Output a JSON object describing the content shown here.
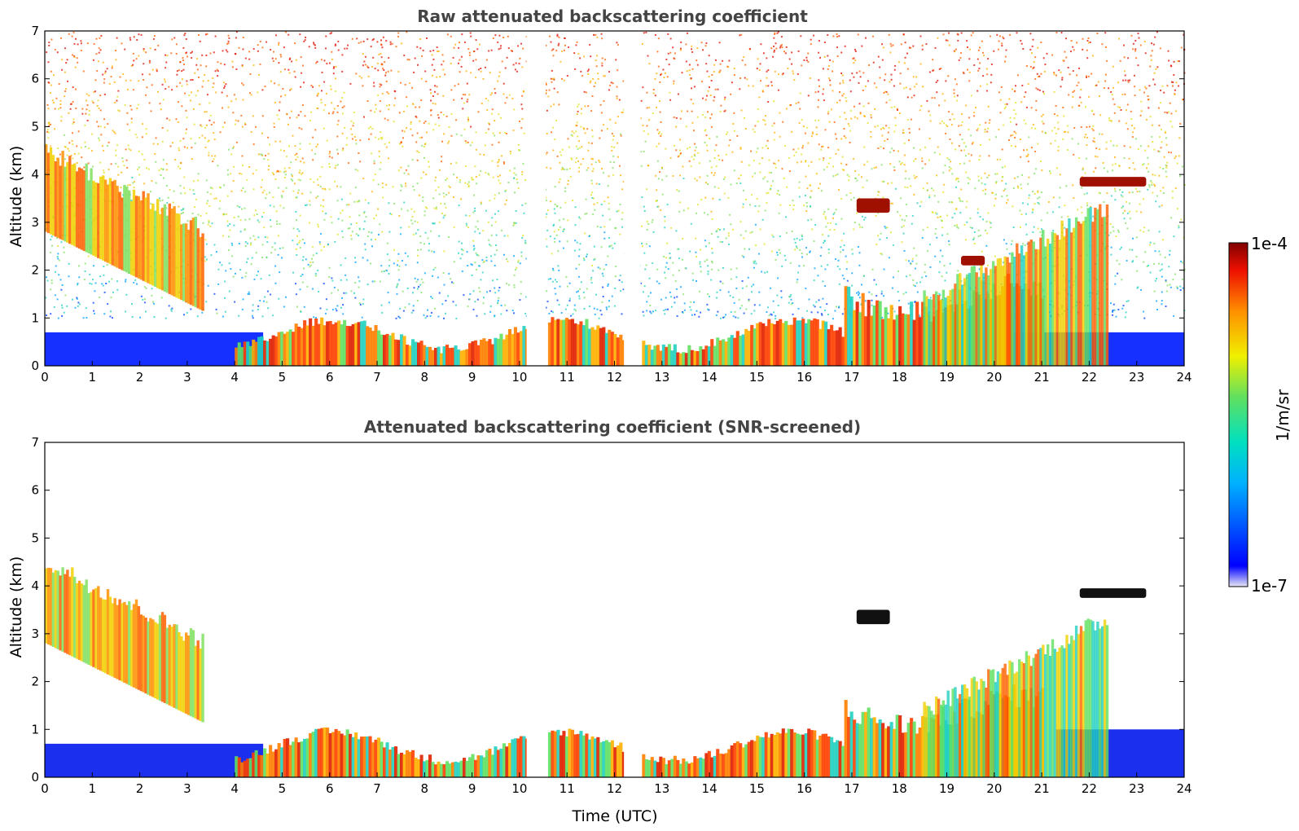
{
  "chart_data": [
    {
      "type": "heatmap",
      "title": "Raw attenuated backscattering coefficient",
      "xlabel": "",
      "ylabel": "Altitude (km)",
      "xlim": [
        0,
        24
      ],
      "ylim": [
        0,
        7
      ],
      "x_ticks": [
        0,
        1,
        2,
        3,
        4,
        5,
        6,
        7,
        8,
        9,
        10,
        11,
        12,
        13,
        14,
        15,
        16,
        17,
        18,
        19,
        20,
        21,
        22,
        23,
        24
      ],
      "y_ticks": [
        0,
        1,
        2,
        3,
        4,
        5,
        6,
        7
      ],
      "data_gaps_utc": [
        [
          10.15,
          10.55
        ],
        [
          12.2,
          12.55
        ]
      ],
      "features": [
        {
          "name": "morning elevated aerosol layer",
          "x": [
            0,
            3.2
          ],
          "altitude_km": [
            1.0,
            4.3
          ]
        },
        {
          "name": "boundary layer",
          "x": [
            4,
            10.1
          ],
          "altitude_km": [
            0,
            1.1
          ]
        },
        {
          "name": "cloud layer",
          "x": [
            17.1,
            17.8
          ],
          "altitude_km": [
            3.2,
            3.5
          ]
        },
        {
          "name": "cloud layer",
          "x": [
            19.3,
            19.8
          ],
          "altitude_km": [
            2.1,
            2.3
          ]
        },
        {
          "name": "cloud layer",
          "x": [
            21.8,
            23.2
          ],
          "altitude_km": [
            3.75,
            3.95
          ]
        },
        {
          "name": "aerosol plume",
          "x": [
            20.4,
            22.4
          ],
          "altitude_km": [
            0,
            3.0
          ]
        }
      ]
    },
    {
      "type": "heatmap",
      "title": "Attenuated backscattering coefficient (SNR-screened)",
      "xlabel": "Time (UTC)",
      "ylabel": "Altitude (km)",
      "xlim": [
        0,
        24
      ],
      "ylim": [
        0,
        7
      ],
      "x_ticks": [
        0,
        1,
        2,
        3,
        4,
        5,
        6,
        7,
        8,
        9,
        10,
        11,
        12,
        13,
        14,
        15,
        16,
        17,
        18,
        19,
        20,
        21,
        22,
        23,
        24
      ],
      "y_ticks": [
        0,
        1,
        2,
        3,
        4,
        5,
        6,
        7
      ],
      "data_gaps_utc": [
        [
          10.15,
          10.55
        ],
        [
          12.2,
          12.55
        ]
      ],
      "features": [
        {
          "name": "morning elevated aerosol layer",
          "x": [
            0,
            3.2
          ],
          "altitude_km": [
            1.0,
            4.6
          ]
        },
        {
          "name": "boundary layer",
          "x": [
            4,
            10.1
          ],
          "altitude_km": [
            0,
            1.1
          ]
        },
        {
          "name": "cloud layer",
          "x": [
            17.1,
            17.8
          ],
          "altitude_km": [
            3.2,
            3.5
          ]
        },
        {
          "name": "cloud layer",
          "x": [
            21.8,
            23.2
          ],
          "altitude_km": [
            3.75,
            3.95
          ]
        },
        {
          "name": "aerosol plume",
          "x": [
            20.4,
            22.4
          ],
          "altitude_km": [
            0,
            3.0
          ]
        }
      ]
    }
  ],
  "colorbar": {
    "label": "1/m/sr",
    "max_label": "1e-4",
    "min_label": "1e-7",
    "scale": "log",
    "colormap": [
      "#e8e8f5",
      "#0000ff",
      "#00b0ff",
      "#00e0c0",
      "#60e060",
      "#f0f000",
      "#ff9000",
      "#ee1000",
      "#800000"
    ]
  }
}
